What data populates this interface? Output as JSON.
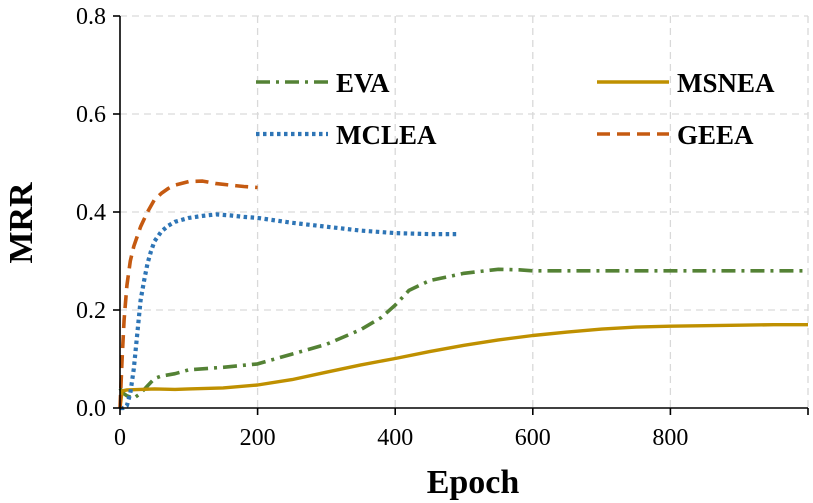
{
  "chart_data": {
    "type": "line",
    "title": "",
    "xlabel": "Epoch",
    "ylabel": "MRR",
    "xlim": [
      0,
      1000
    ],
    "ylim": [
      0,
      0.8
    ],
    "xticks": [
      0,
      200,
      400,
      600,
      800
    ],
    "xtick_labels": [
      "0",
      "200",
      "400",
      "600",
      "800"
    ],
    "yticks": [
      0.0,
      0.2,
      0.4,
      0.6,
      0.8
    ],
    "ytick_labels": [
      "0.0",
      "0.2",
      "0.4",
      "0.6",
      "0.8"
    ],
    "grid": true,
    "legend_position": "top-right",
    "series": [
      {
        "name": "EVA",
        "color": "#548235",
        "dash": "dash-dot",
        "x": [
          0,
          5,
          10,
          20,
          30,
          40,
          50,
          60,
          80,
          100,
          150,
          200,
          250,
          300,
          350,
          380,
          400,
          420,
          450,
          500,
          550,
          580,
          600,
          700,
          800,
          900,
          1000
        ],
        "y": [
          0.04,
          0.03,
          0.025,
          0.02,
          0.03,
          0.045,
          0.06,
          0.065,
          0.07,
          0.078,
          0.083,
          0.09,
          0.11,
          0.13,
          0.16,
          0.185,
          0.21,
          0.24,
          0.26,
          0.275,
          0.283,
          0.282,
          0.28,
          0.28,
          0.28,
          0.28,
          0.28
        ]
      },
      {
        "name": "MSNEA",
        "color": "#BF9000",
        "dash": "solid",
        "x": [
          0,
          3,
          10,
          30,
          50,
          80,
          100,
          150,
          200,
          250,
          300,
          350,
          400,
          450,
          500,
          550,
          600,
          650,
          700,
          750,
          800,
          850,
          900,
          950,
          1000
        ],
        "y": [
          0.0,
          0.035,
          0.037,
          0.038,
          0.039,
          0.038,
          0.039,
          0.041,
          0.047,
          0.058,
          0.073,
          0.088,
          0.101,
          0.115,
          0.128,
          0.139,
          0.148,
          0.155,
          0.161,
          0.165,
          0.167,
          0.168,
          0.169,
          0.17,
          0.17
        ]
      },
      {
        "name": "MCLEA",
        "color": "#2E75B6",
        "dash": "dotted",
        "x": [
          0,
          5,
          10,
          15,
          20,
          25,
          30,
          35,
          40,
          45,
          50,
          60,
          70,
          80,
          100,
          120,
          140,
          160,
          180,
          200,
          250,
          300,
          350,
          400,
          450,
          490
        ],
        "y": [
          0.0,
          0.0,
          0.005,
          0.03,
          0.08,
          0.15,
          0.22,
          0.26,
          0.295,
          0.32,
          0.34,
          0.36,
          0.372,
          0.38,
          0.388,
          0.392,
          0.395,
          0.393,
          0.39,
          0.388,
          0.378,
          0.37,
          0.362,
          0.357,
          0.355,
          0.355
        ]
      },
      {
        "name": "GEEA",
        "color": "#C55A11",
        "dash": "dashed",
        "x": [
          0,
          3,
          6,
          10,
          15,
          20,
          25,
          30,
          40,
          50,
          60,
          70,
          80,
          100,
          120,
          140,
          160,
          180,
          200
        ],
        "y": [
          0.0,
          0.1,
          0.18,
          0.25,
          0.3,
          0.33,
          0.35,
          0.37,
          0.4,
          0.425,
          0.438,
          0.448,
          0.455,
          0.462,
          0.463,
          0.458,
          0.455,
          0.452,
          0.45
        ]
      }
    ]
  }
}
